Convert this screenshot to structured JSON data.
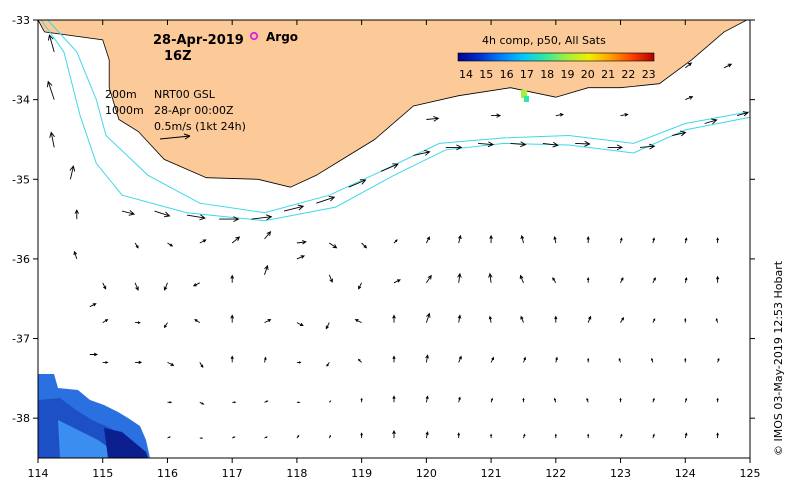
{
  "header": {
    "date": "28-Apr-2019",
    "hour": "16Z",
    "argo_label": "Argo"
  },
  "legend": {
    "depth_200": "200m",
    "depth_1000": "1000m",
    "product": "NRT00 GSL",
    "product_time": "28-Apr 00:00Z",
    "scale": "0.5m/s (1kt 24h)"
  },
  "colorbar": {
    "title": "4h comp, p50, All Sats",
    "labels": [
      "14",
      "15",
      "16",
      "17",
      "18",
      "19",
      "20",
      "21",
      "22",
      "23"
    ],
    "colors": [
      "#000090",
      "#0030d0",
      "#0080ff",
      "#00c8ff",
      "#30e8a0",
      "#a0f040",
      "#f0f000",
      "#ffa000",
      "#ff4000",
      "#b00000"
    ]
  },
  "credit": "© IMOS 03-May-2019 12:53 Hobart",
  "colors": {
    "land": "#fcc998",
    "isobath": "#3fd8e8",
    "argo": "#e020e0",
    "sst_patch": "#2a70e0"
  },
  "chart_data": {
    "type": "map",
    "title": "28-Apr-2019 16Z",
    "xlim": [
      114,
      125
    ],
    "ylim": [
      -38.5,
      -33
    ],
    "x_ticks": [
      "114",
      "115",
      "116",
      "117",
      "118",
      "119",
      "120",
      "121",
      "122",
      "123",
      "124",
      "125"
    ],
    "y_ticks": [
      "-33",
      "-34",
      "-35",
      "-36",
      "-37",
      "-38"
    ],
    "argo_floats": [
      {
        "lon": 117.35,
        "lat": -33.25
      }
    ],
    "coast": [
      [
        114.0,
        -33.0
      ],
      [
        114.1,
        -33.15
      ],
      [
        115.0,
        -33.25
      ],
      [
        115.1,
        -33.5
      ],
      [
        115.1,
        -33.85
      ],
      [
        115.25,
        -34.25
      ],
      [
        115.55,
        -34.4
      ],
      [
        115.95,
        -34.75
      ],
      [
        116.6,
        -34.98
      ],
      [
        117.4,
        -35.0
      ],
      [
        117.9,
        -35.1
      ],
      [
        118.3,
        -34.95
      ],
      [
        118.7,
        -34.75
      ],
      [
        119.2,
        -34.5
      ],
      [
        119.8,
        -34.08
      ],
      [
        120.5,
        -33.95
      ],
      [
        121.3,
        -33.85
      ],
      [
        122.0,
        -33.97
      ],
      [
        122.5,
        -33.85
      ],
      [
        123.0,
        -33.85
      ],
      [
        123.6,
        -33.8
      ],
      [
        124.1,
        -33.5
      ],
      [
        124.6,
        -33.15
      ],
      [
        124.95,
        -33.0
      ]
    ],
    "isobath_200m": [
      [
        114.15,
        -33.0
      ],
      [
        114.6,
        -33.4
      ],
      [
        114.9,
        -34.0
      ],
      [
        115.05,
        -34.45
      ],
      [
        115.7,
        -34.95
      ],
      [
        116.5,
        -35.3
      ],
      [
        117.5,
        -35.42
      ],
      [
        118.5,
        -35.2
      ],
      [
        119.3,
        -34.9
      ],
      [
        120.2,
        -34.55
      ],
      [
        121.2,
        -34.48
      ],
      [
        122.2,
        -34.45
      ],
      [
        123.2,
        -34.55
      ],
      [
        124.0,
        -34.3
      ],
      [
        125.0,
        -34.15
      ]
    ],
    "isobath_1000m": [
      [
        114.05,
        -33.0
      ],
      [
        114.4,
        -33.4
      ],
      [
        114.65,
        -34.2
      ],
      [
        114.9,
        -34.8
      ],
      [
        115.3,
        -35.2
      ],
      [
        116.3,
        -35.42
      ],
      [
        117.5,
        -35.52
      ],
      [
        118.6,
        -35.35
      ],
      [
        119.5,
        -34.95
      ],
      [
        120.3,
        -34.63
      ],
      [
        121.2,
        -34.55
      ],
      [
        122.2,
        -34.57
      ],
      [
        123.2,
        -34.67
      ],
      [
        124.0,
        -34.38
      ],
      [
        125.0,
        -34.22
      ]
    ],
    "current_vectors": [
      {
        "lon": 114.25,
        "lat": -33.4,
        "u": -0.08,
        "v": 0.28
      },
      {
        "lon": 114.25,
        "lat": -34.0,
        "u": -0.1,
        "v": 0.3
      },
      {
        "lon": 114.25,
        "lat": -34.6,
        "u": -0.05,
        "v": 0.25
      },
      {
        "lon": 114.5,
        "lat": -35.0,
        "u": 0.05,
        "v": 0.22
      },
      {
        "lon": 114.6,
        "lat": -35.5,
        "u": 0.0,
        "v": 0.15
      },
      {
        "lon": 114.6,
        "lat": -36.0,
        "u": -0.04,
        "v": 0.12
      },
      {
        "lon": 114.8,
        "lat": -36.6,
        "u": 0.1,
        "v": 0.05
      },
      {
        "lon": 114.8,
        "lat": -37.2,
        "u": 0.12,
        "v": 0.0
      },
      {
        "lon": 115.3,
        "lat": -35.4,
        "u": 0.2,
        "v": -0.05
      },
      {
        "lon": 115.8,
        "lat": -35.4,
        "u": 0.25,
        "v": -0.08
      },
      {
        "lon": 116.3,
        "lat": -35.45,
        "u": 0.3,
        "v": -0.05
      },
      {
        "lon": 116.8,
        "lat": -35.5,
        "u": 0.32,
        "v": 0.0
      },
      {
        "lon": 117.3,
        "lat": -35.5,
        "u": 0.33,
        "v": 0.04
      },
      {
        "lon": 117.8,
        "lat": -35.4,
        "u": 0.32,
        "v": 0.08
      },
      {
        "lon": 118.3,
        "lat": -35.3,
        "u": 0.3,
        "v": 0.1
      },
      {
        "lon": 118.8,
        "lat": -35.1,
        "u": 0.28,
        "v": 0.12
      },
      {
        "lon": 119.3,
        "lat": -34.9,
        "u": 0.28,
        "v": 0.12
      },
      {
        "lon": 119.8,
        "lat": -34.7,
        "u": 0.27,
        "v": 0.06
      },
      {
        "lon": 120.3,
        "lat": -34.6,
        "u": 0.26,
        "v": 0.0
      },
      {
        "lon": 120.8,
        "lat": -34.55,
        "u": 0.25,
        "v": -0.02
      },
      {
        "lon": 121.3,
        "lat": -34.55,
        "u": 0.25,
        "v": -0.02
      },
      {
        "lon": 121.8,
        "lat": -34.55,
        "u": 0.25,
        "v": -0.03
      },
      {
        "lon": 122.3,
        "lat": -34.55,
        "u": 0.24,
        "v": -0.01
      },
      {
        "lon": 122.8,
        "lat": -34.6,
        "u": 0.24,
        "v": 0.0
      },
      {
        "lon": 123.3,
        "lat": -34.6,
        "u": 0.24,
        "v": 0.02
      },
      {
        "lon": 123.8,
        "lat": -34.45,
        "u": 0.22,
        "v": 0.05
      },
      {
        "lon": 124.3,
        "lat": -34.3,
        "u": 0.2,
        "v": 0.06
      },
      {
        "lon": 124.8,
        "lat": -34.2,
        "u": 0.18,
        "v": 0.05
      },
      {
        "lon": 120.0,
        "lat": -34.25,
        "u": 0.2,
        "v": 0.02
      },
      {
        "lon": 121.0,
        "lat": -34.2,
        "u": 0.15,
        "v": 0.0
      },
      {
        "lon": 122.0,
        "lat": -34.2,
        "u": 0.12,
        "v": 0.02
      },
      {
        "lon": 123.0,
        "lat": -34.2,
        "u": 0.12,
        "v": 0.02
      },
      {
        "lon": 124.0,
        "lat": -34.0,
        "u": 0.12,
        "v": 0.05
      },
      {
        "lon": 124.0,
        "lat": -33.6,
        "u": 0.1,
        "v": 0.08
      },
      {
        "lon": 124.6,
        "lat": -33.6,
        "u": 0.12,
        "v": 0.06
      },
      {
        "lon": 115.5,
        "lat": -35.8,
        "u": 0.05,
        "v": -0.08
      },
      {
        "lon": 116.0,
        "lat": -35.8,
        "u": 0.08,
        "v": -0.05
      },
      {
        "lon": 116.5,
        "lat": -35.8,
        "u": 0.1,
        "v": 0.05
      },
      {
        "lon": 117.0,
        "lat": -35.8,
        "u": 0.12,
        "v": 0.1
      },
      {
        "lon": 117.5,
        "lat": -35.75,
        "u": 0.1,
        "v": 0.12
      },
      {
        "lon": 118.0,
        "lat": -35.8,
        "u": 0.15,
        "v": 0.02
      },
      {
        "lon": 118.5,
        "lat": -35.8,
        "u": 0.12,
        "v": -0.08
      },
      {
        "lon": 119.0,
        "lat": -35.8,
        "u": 0.08,
        "v": -0.08
      },
      {
        "lon": 119.5,
        "lat": -35.8,
        "u": 0.05,
        "v": 0.05
      },
      {
        "lon": 120.0,
        "lat": -35.8,
        "u": 0.05,
        "v": 0.1
      },
      {
        "lon": 120.5,
        "lat": -35.8,
        "u": 0.03,
        "v": 0.12
      },
      {
        "lon": 121.0,
        "lat": -35.8,
        "u": 0.0,
        "v": 0.12
      },
      {
        "lon": 121.5,
        "lat": -35.8,
        "u": -0.03,
        "v": 0.12
      },
      {
        "lon": 122.0,
        "lat": -35.8,
        "u": -0.02,
        "v": 0.1
      },
      {
        "lon": 122.5,
        "lat": -35.8,
        "u": 0.0,
        "v": 0.1
      },
      {
        "lon": 123.0,
        "lat": -35.8,
        "u": 0.02,
        "v": 0.08
      },
      {
        "lon": 123.5,
        "lat": -35.8,
        "u": 0.02,
        "v": 0.08
      },
      {
        "lon": 124.0,
        "lat": -35.8,
        "u": 0.02,
        "v": 0.08
      },
      {
        "lon": 124.5,
        "lat": -35.8,
        "u": 0.0,
        "v": 0.08
      },
      {
        "lon": 115.0,
        "lat": -36.3,
        "u": 0.05,
        "v": -0.1
      },
      {
        "lon": 115.5,
        "lat": -36.3,
        "u": 0.05,
        "v": -0.12
      },
      {
        "lon": 116.0,
        "lat": -36.3,
        "u": -0.05,
        "v": -0.12
      },
      {
        "lon": 116.5,
        "lat": -36.3,
        "u": -0.1,
        "v": -0.05
      },
      {
        "lon": 117.0,
        "lat": -36.3,
        "u": 0.0,
        "v": 0.12
      },
      {
        "lon": 117.5,
        "lat": -36.2,
        "u": 0.05,
        "v": 0.15
      },
      {
        "lon": 118.0,
        "lat": -36.0,
        "u": 0.12,
        "v": 0.05
      },
      {
        "lon": 118.5,
        "lat": -36.2,
        "u": 0.05,
        "v": -0.12
      },
      {
        "lon": 119.0,
        "lat": -36.3,
        "u": -0.05,
        "v": -0.1
      },
      {
        "lon": 119.5,
        "lat": -36.3,
        "u": 0.1,
        "v": 0.05
      },
      {
        "lon": 120.0,
        "lat": -36.3,
        "u": 0.08,
        "v": 0.12
      },
      {
        "lon": 120.5,
        "lat": -36.3,
        "u": 0.02,
        "v": 0.15
      },
      {
        "lon": 121.0,
        "lat": -36.3,
        "u": -0.02,
        "v": 0.15
      },
      {
        "lon": 121.5,
        "lat": -36.3,
        "u": -0.05,
        "v": 0.12
      },
      {
        "lon": 122.0,
        "lat": -36.3,
        "u": -0.05,
        "v": 0.08
      },
      {
        "lon": 122.5,
        "lat": -36.3,
        "u": 0.0,
        "v": 0.08
      },
      {
        "lon": 123.0,
        "lat": -36.3,
        "u": 0.04,
        "v": 0.08
      },
      {
        "lon": 123.5,
        "lat": -36.3,
        "u": 0.04,
        "v": 0.08
      },
      {
        "lon": 124.0,
        "lat": -36.3,
        "u": 0.02,
        "v": 0.08
      },
      {
        "lon": 124.5,
        "lat": -36.3,
        "u": 0.0,
        "v": 0.1
      },
      {
        "lon": 115.0,
        "lat": -36.8,
        "u": 0.08,
        "v": 0.05
      },
      {
        "lon": 115.5,
        "lat": -36.8,
        "u": 0.08,
        "v": 0.0
      },
      {
        "lon": 116.0,
        "lat": -36.8,
        "u": -0.05,
        "v": -0.08
      },
      {
        "lon": 116.5,
        "lat": -36.8,
        "u": -0.08,
        "v": 0.05
      },
      {
        "lon": 117.0,
        "lat": -36.8,
        "u": 0.0,
        "v": 0.12
      },
      {
        "lon": 117.5,
        "lat": -36.8,
        "u": 0.1,
        "v": 0.05
      },
      {
        "lon": 118.0,
        "lat": -36.8,
        "u": 0.1,
        "v": -0.05
      },
      {
        "lon": 118.5,
        "lat": -36.8,
        "u": -0.05,
        "v": -0.1
      },
      {
        "lon": 119.0,
        "lat": -36.8,
        "u": -0.1,
        "v": 0.05
      },
      {
        "lon": 119.5,
        "lat": -36.8,
        "u": 0.0,
        "v": 0.12
      },
      {
        "lon": 120.0,
        "lat": -36.8,
        "u": 0.05,
        "v": 0.15
      },
      {
        "lon": 120.5,
        "lat": -36.8,
        "u": 0.02,
        "v": 0.12
      },
      {
        "lon": 121.0,
        "lat": -36.8,
        "u": -0.02,
        "v": 0.1
      },
      {
        "lon": 121.5,
        "lat": -36.8,
        "u": -0.04,
        "v": 0.1
      },
      {
        "lon": 122.0,
        "lat": -36.8,
        "u": 0.0,
        "v": 0.1
      },
      {
        "lon": 122.5,
        "lat": -36.8,
        "u": 0.04,
        "v": 0.1
      },
      {
        "lon": 123.0,
        "lat": -36.8,
        "u": 0.05,
        "v": 0.08
      },
      {
        "lon": 123.5,
        "lat": -36.8,
        "u": 0.03,
        "v": 0.06
      },
      {
        "lon": 124.0,
        "lat": -36.8,
        "u": 0.0,
        "v": 0.06
      },
      {
        "lon": 124.5,
        "lat": -36.8,
        "u": -0.02,
        "v": 0.06
      },
      {
        "lon": 115.0,
        "lat": -37.3,
        "u": 0.08,
        "v": 0.0
      },
      {
        "lon": 115.5,
        "lat": -37.3,
        "u": 0.1,
        "v": 0.0
      },
      {
        "lon": 116.0,
        "lat": -37.3,
        "u": 0.1,
        "v": -0.05
      },
      {
        "lon": 116.5,
        "lat": -37.3,
        "u": 0.05,
        "v": -0.08
      },
      {
        "lon": 117.0,
        "lat": -37.3,
        "u": 0.0,
        "v": 0.1
      },
      {
        "lon": 117.5,
        "lat": -37.3,
        "u": 0.02,
        "v": 0.08
      },
      {
        "lon": 118.0,
        "lat": -37.3,
        "u": 0.06,
        "v": 0.0
      },
      {
        "lon": 118.5,
        "lat": -37.3,
        "u": -0.04,
        "v": -0.06
      },
      {
        "lon": 119.0,
        "lat": -37.3,
        "u": -0.05,
        "v": 0.05
      },
      {
        "lon": 119.5,
        "lat": -37.3,
        "u": 0.0,
        "v": 0.1
      },
      {
        "lon": 120.0,
        "lat": -37.3,
        "u": 0.02,
        "v": 0.12
      },
      {
        "lon": 120.5,
        "lat": -37.3,
        "u": 0.04,
        "v": 0.1
      },
      {
        "lon": 121.0,
        "lat": -37.3,
        "u": 0.04,
        "v": 0.08
      },
      {
        "lon": 121.5,
        "lat": -37.3,
        "u": 0.03,
        "v": 0.08
      },
      {
        "lon": 122.0,
        "lat": -37.3,
        "u": 0.02,
        "v": 0.08
      },
      {
        "lon": 122.5,
        "lat": -37.3,
        "u": 0.0,
        "v": 0.06
      },
      {
        "lon": 123.0,
        "lat": -37.3,
        "u": -0.02,
        "v": 0.06
      },
      {
        "lon": 123.5,
        "lat": -37.3,
        "u": -0.02,
        "v": 0.06
      },
      {
        "lon": 124.0,
        "lat": -37.3,
        "u": 0.0,
        "v": 0.06
      },
      {
        "lon": 124.5,
        "lat": -37.3,
        "u": 0.02,
        "v": 0.06
      },
      {
        "lon": 116.0,
        "lat": -37.8,
        "u": 0.06,
        "v": 0.0
      },
      {
        "lon": 116.5,
        "lat": -37.8,
        "u": 0.06,
        "v": -0.03
      },
      {
        "lon": 117.0,
        "lat": -37.8,
        "u": 0.05,
        "v": 0.0
      },
      {
        "lon": 117.5,
        "lat": -37.8,
        "u": 0.05,
        "v": 0.02
      },
      {
        "lon": 118.0,
        "lat": -37.8,
        "u": 0.04,
        "v": 0.0
      },
      {
        "lon": 118.5,
        "lat": -37.8,
        "u": 0.02,
        "v": 0.02
      },
      {
        "lon": 119.0,
        "lat": -37.8,
        "u": 0.0,
        "v": 0.06
      },
      {
        "lon": 119.5,
        "lat": -37.8,
        "u": 0.0,
        "v": 0.1
      },
      {
        "lon": 120.0,
        "lat": -37.8,
        "u": 0.02,
        "v": 0.1
      },
      {
        "lon": 120.5,
        "lat": -37.8,
        "u": 0.02,
        "v": 0.08
      },
      {
        "lon": 121.0,
        "lat": -37.8,
        "u": 0.02,
        "v": 0.06
      },
      {
        "lon": 121.5,
        "lat": -37.8,
        "u": 0.0,
        "v": 0.06
      },
      {
        "lon": 122.0,
        "lat": -37.8,
        "u": -0.02,
        "v": 0.06
      },
      {
        "lon": 122.5,
        "lat": -37.8,
        "u": -0.02,
        "v": 0.06
      },
      {
        "lon": 123.0,
        "lat": -37.8,
        "u": 0.0,
        "v": 0.06
      },
      {
        "lon": 123.5,
        "lat": -37.8,
        "u": 0.02,
        "v": 0.06
      },
      {
        "lon": 124.0,
        "lat": -37.8,
        "u": 0.02,
        "v": 0.06
      },
      {
        "lon": 124.5,
        "lat": -37.8,
        "u": 0.0,
        "v": 0.06
      },
      {
        "lon": 116.0,
        "lat": -38.25,
        "u": 0.04,
        "v": 0.02
      },
      {
        "lon": 116.5,
        "lat": -38.25,
        "u": 0.04,
        "v": 0.0
      },
      {
        "lon": 117.0,
        "lat": -38.25,
        "u": 0.04,
        "v": 0.02
      },
      {
        "lon": 117.5,
        "lat": -38.25,
        "u": 0.04,
        "v": 0.02
      },
      {
        "lon": 118.0,
        "lat": -38.25,
        "u": 0.03,
        "v": 0.04
      },
      {
        "lon": 118.5,
        "lat": -38.25,
        "u": 0.02,
        "v": 0.04
      },
      {
        "lon": 119.0,
        "lat": -38.25,
        "u": 0.0,
        "v": 0.08
      },
      {
        "lon": 119.5,
        "lat": -38.25,
        "u": 0.0,
        "v": 0.12
      },
      {
        "lon": 120.0,
        "lat": -38.25,
        "u": 0.02,
        "v": 0.1
      },
      {
        "lon": 120.5,
        "lat": -38.25,
        "u": 0.0,
        "v": 0.08
      },
      {
        "lon": 121.0,
        "lat": -38.25,
        "u": 0.0,
        "v": 0.06
      },
      {
        "lon": 121.5,
        "lat": -38.25,
        "u": 0.02,
        "v": 0.06
      },
      {
        "lon": 122.0,
        "lat": -38.25,
        "u": 0.0,
        "v": 0.06
      },
      {
        "lon": 122.5,
        "lat": -38.25,
        "u": 0.0,
        "v": 0.06
      },
      {
        "lon": 123.0,
        "lat": -38.25,
        "u": 0.02,
        "v": 0.06
      },
      {
        "lon": 123.5,
        "lat": -38.25,
        "u": 0.02,
        "v": 0.06
      },
      {
        "lon": 124.0,
        "lat": -38.25,
        "u": 0.02,
        "v": 0.08
      },
      {
        "lon": 124.5,
        "lat": -38.25,
        "u": 0.0,
        "v": 0.08
      }
    ]
  }
}
